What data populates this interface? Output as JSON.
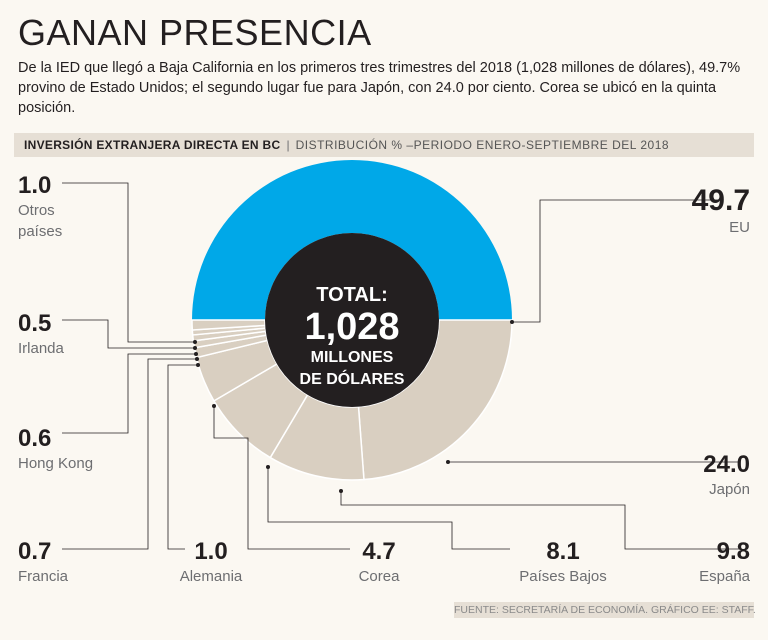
{
  "title": "GANAN PRESENCIA",
  "subtitle": "De la IED que llegó a Baja California en los primeros tres trimestres del 2018 (1,028 millones de dólares), 49.7% provino de Estado Unidos; el segundo lugar fue para Japón, con 24.0 por ciento. Corea se ubicó en la quinta posición.",
  "header": {
    "main": "INVERSIÓN EXTRANJERA DIRECTA EN BC",
    "separator": "|",
    "sub": "DISTRIBUCIÓN % –PERIODO ENERO-SEPTIEMBRE DEL 2018"
  },
  "center": {
    "line1": "TOTAL:",
    "line2": "1,028",
    "line3": "MILLONES",
    "line4": "DE DÓLARES"
  },
  "footer": "FUENTE: SECRETARÍA DE ECONOMÍA. GRÁFICO EE: STAFF.",
  "colors": {
    "primary": "#00a8e8",
    "secondary": "#d9cfc1",
    "center": "#231f20",
    "background": "#fbf8f2",
    "leader": "#231f20"
  },
  "chart_data": {
    "type": "pie",
    "subtype": "semi-donut",
    "title": "INVERSIÓN EXTRANJERA DIRECTA EN BC",
    "unit": "%",
    "total": "1,028 millones de dólares",
    "slices": [
      {
        "name": "EU",
        "label_lines": [
          "EU"
        ],
        "value": 49.7,
        "display": "49.7"
      },
      {
        "name": "Japón",
        "label_lines": [
          "Japón"
        ],
        "value": 24.0,
        "display": "24.0"
      },
      {
        "name": "España",
        "label_lines": [
          "España"
        ],
        "value": 9.8,
        "display": "9.8"
      },
      {
        "name": "Países Bajos",
        "label_lines": [
          "Países Bajos"
        ],
        "value": 8.1,
        "display": "8.1"
      },
      {
        "name": "Corea",
        "label_lines": [
          "Corea"
        ],
        "value": 4.7,
        "display": "4.7"
      },
      {
        "name": "Alemania",
        "label_lines": [
          "Alemania"
        ],
        "value": 1.0,
        "display": "1.0"
      },
      {
        "name": "Francia",
        "label_lines": [
          "Francia"
        ],
        "value": 0.7,
        "display": "0.7"
      },
      {
        "name": "Hong Kong",
        "label_lines": [
          "Hong Kong"
        ],
        "value": 0.6,
        "display": "0.6"
      },
      {
        "name": "Irlanda",
        "label_lines": [
          "Irlanda"
        ],
        "value": 0.5,
        "display": "0.5"
      },
      {
        "name": "Otros países",
        "label_lines": [
          "Otros",
          "países"
        ],
        "value": 1.0,
        "display": "1.0"
      }
    ]
  }
}
